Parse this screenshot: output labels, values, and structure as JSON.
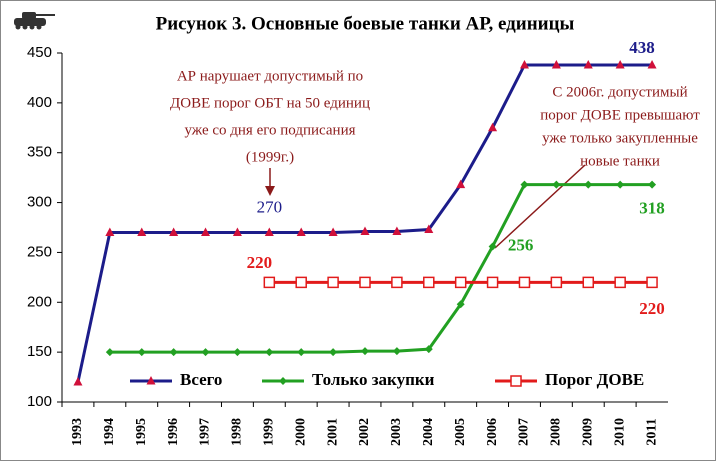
{
  "chart_data": {
    "type": "line",
    "title": "Рисунок 3. Основные боевые танки АР, единицы",
    "categories": [
      "1993",
      "1994",
      "1995",
      "1996",
      "1997",
      "1998",
      "1999",
      "2000",
      "2001",
      "2002",
      "2003",
      "2004",
      "2005",
      "2006",
      "2007",
      "2008",
      "2009",
      "2010",
      "2011"
    ],
    "series": [
      {
        "name": "Всего",
        "color": "#1c1c8a",
        "marker": "triangle",
        "marker_color": "#d0103a",
        "values": [
          120,
          270,
          270,
          270,
          270,
          270,
          270,
          270,
          270,
          271,
          271,
          273,
          318,
          375,
          438,
          438,
          438,
          438,
          438
        ]
      },
      {
        "name": "Только закупки",
        "color": "#22a022",
        "marker": "diamond",
        "marker_color": "#22a022",
        "values": [
          null,
          150,
          150,
          150,
          150,
          150,
          150,
          150,
          150,
          151,
          151,
          153,
          198,
          256,
          318,
          318,
          318,
          318,
          318
        ]
      },
      {
        "name": "Порог ДОВЕ",
        "color": "#e21b1b",
        "marker": "square",
        "marker_color": "#ffffff",
        "values": [
          null,
          null,
          null,
          null,
          null,
          null,
          220,
          220,
          220,
          220,
          220,
          220,
          220,
          220,
          220,
          220,
          220,
          220,
          220
        ]
      }
    ],
    "ylim": [
      100,
      450
    ],
    "yticks": [
      100,
      150,
      200,
      250,
      300,
      350,
      400,
      450
    ],
    "legend": "bottom",
    "annotations": [
      {
        "lines": [
          "АР нарушает допустимый по",
          "ДОВЕ порог ОБТ на 50 единиц",
          "уже со дня его подписания",
          "(1999г.)"
        ]
      },
      {
        "lines": [
          "С 2006г. допустимый",
          "порог ДОВЕ превышают",
          "уже только закупленные",
          "новые танки"
        ]
      }
    ]
  }
}
